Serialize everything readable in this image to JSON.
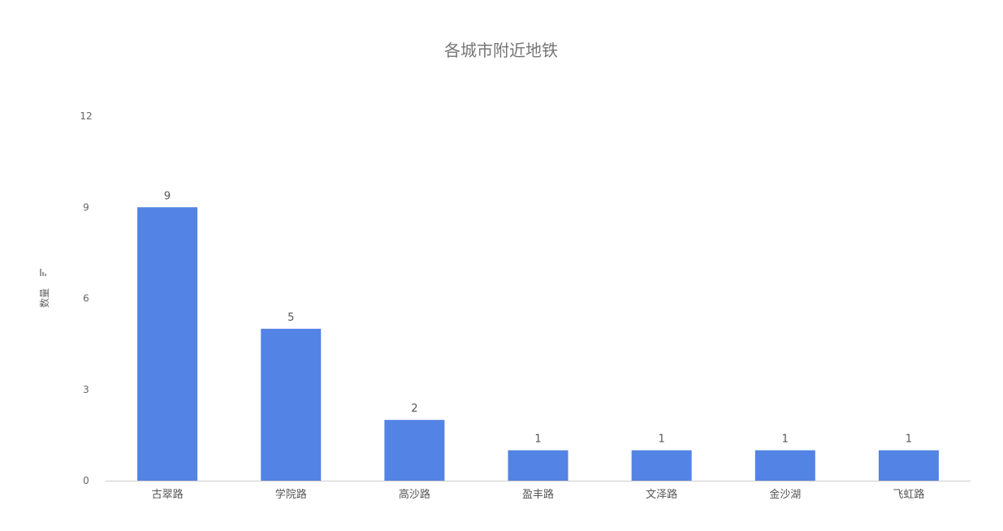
{
  "chart_data": {
    "type": "bar",
    "title": "各城市附近地铁",
    "xlabel": "",
    "ylabel": "数量",
    "categories": [
      "古翠路",
      "学院路",
      "高沙路",
      "盈丰路",
      "文泽路",
      "金沙湖",
      "飞虹路"
    ],
    "values": [
      9,
      5,
      2,
      1,
      1,
      1,
      1
    ],
    "ylim": [
      0,
      12
    ],
    "yticks": [
      0,
      3,
      6,
      9,
      12
    ],
    "grid": false,
    "data_labels": true,
    "bar_color": "#5383e4"
  }
}
